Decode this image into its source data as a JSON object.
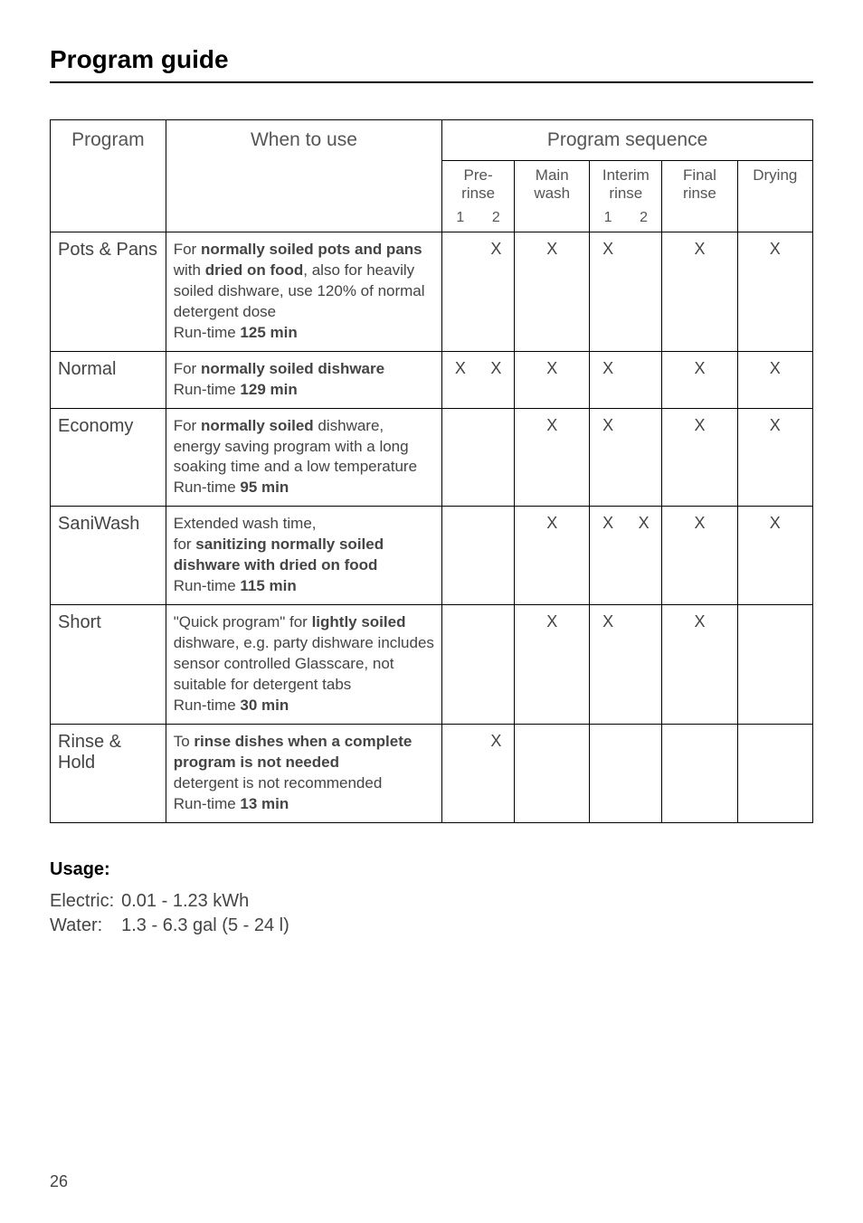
{
  "page_title": "Program guide",
  "page_number": "26",
  "headers": {
    "program": "Program",
    "when": "When to use",
    "sequence": "Program sequence",
    "pre_rinse": "Pre-\nrinse",
    "main_wash": "Main\nwash",
    "interim_rinse": "Interim\nrinse",
    "final_rinse": "Final\nrinse",
    "drying": "Drying",
    "one": "1",
    "two": "2"
  },
  "rows": [
    {
      "program": "Pots & Pans",
      "when_html": "For <b>normally soiled pots and pans</b> with <b>dried on food</b>, also for heavily soiled dishware, use 120% of normal detergent dose<br>Run-time <b>125 min</b>",
      "pr1": "",
      "pr2": "X",
      "main": "X",
      "ir1": "X",
      "ir2": "",
      "final": "X",
      "dry": "X"
    },
    {
      "program": "Normal",
      "when_html": "For <b>normally soiled dishware</b><br>Run-time <b>129 min</b>",
      "pr1": "X",
      "pr2": "X",
      "main": "X",
      "ir1": "X",
      "ir2": "",
      "final": "X",
      "dry": "X"
    },
    {
      "program": "Economy",
      "when_html": "For <b>normally soiled</b> dishware, energy saving program with a long soaking time and a low temperature<br>Run-time <b>95 min</b>",
      "pr1": "",
      "pr2": "",
      "main": "X",
      "ir1": "X",
      "ir2": "",
      "final": "X",
      "dry": "X"
    },
    {
      "program": "SaniWash",
      "when_html": "Extended wash time,<br>for <b>sanitizing normally soiled dishware with dried on food</b><br>Run-time <b>115 min</b>",
      "pr1": "",
      "pr2": "",
      "main": "X",
      "ir1": "X",
      "ir2": "X",
      "final": "X",
      "dry": "X"
    },
    {
      "program": "Short",
      "when_html": "\"Quick program\" for <b>lightly soiled</b> dishware, e.g. party dishware includes sensor controlled Glasscare, not suitable for detergent tabs<br>Run-time <b>30 min</b>",
      "pr1": "",
      "pr2": "",
      "main": "X",
      "ir1": "X",
      "ir2": "",
      "final": "X",
      "dry": ""
    },
    {
      "program": "Rinse & Hold",
      "when_html": "To <b>rinse dishes when a complete program is not needed</b><br>detergent is not recommended<br>Run-time <b>13 min</b>",
      "pr1": "",
      "pr2": "X",
      "main": "",
      "ir1": "",
      "ir2": "",
      "final": "",
      "dry": ""
    }
  ],
  "usage": {
    "heading": "Usage:",
    "electric_label": "Electric:",
    "electric_value": "0.01 - 1.23 kWh",
    "water_label": "Water:",
    "water_value": "1.3 - 6.3 gal (5 - 24 l)"
  }
}
